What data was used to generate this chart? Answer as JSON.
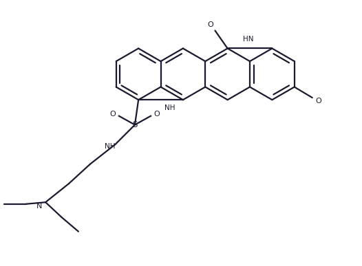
{
  "bg_color": "#ffffff",
  "bond_color": "#1a1a2e",
  "lw": 1.6,
  "figsize": [
    5.26,
    3.87
  ],
  "dpi": 100,
  "xlim": [
    0,
    10
  ],
  "ylim": [
    0,
    7.4
  ]
}
